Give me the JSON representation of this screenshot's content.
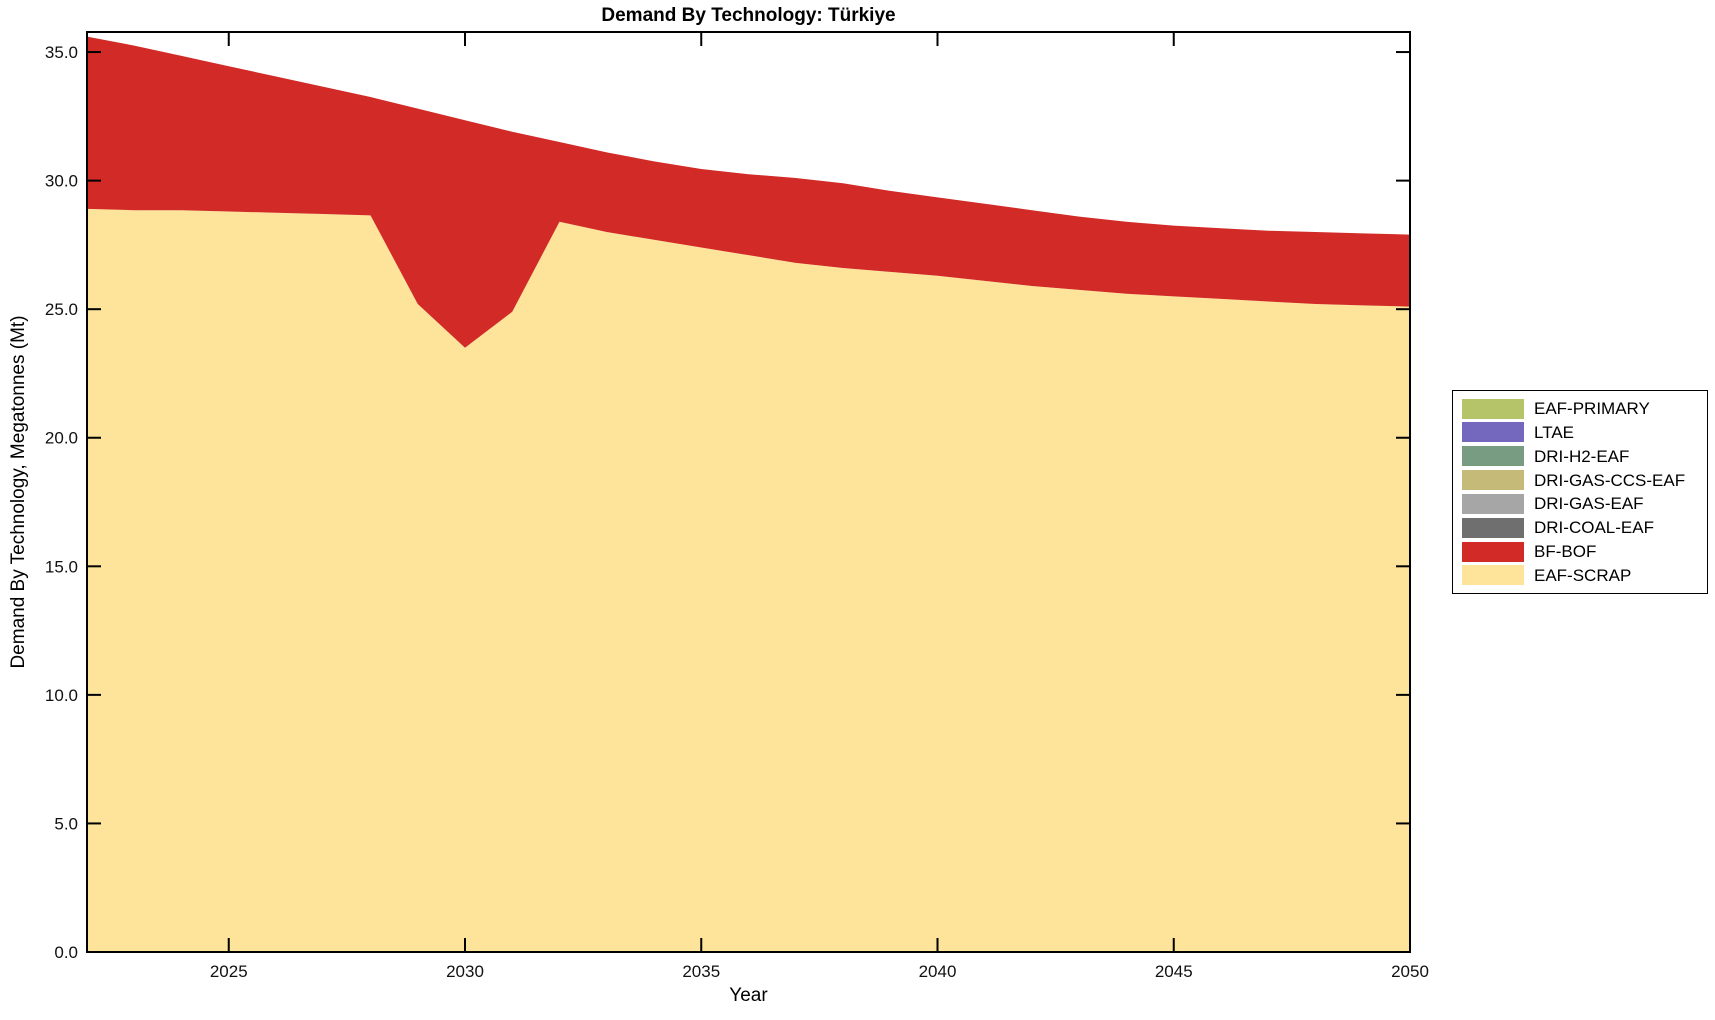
{
  "chart_data": {
    "type": "area",
    "stacked": true,
    "title": "Demand By Technology: Türkiye",
    "xlabel": "Year",
    "ylabel": "Demand By Technology, Megatonnes (Mt)",
    "xlim": [
      2022,
      2050
    ],
    "ylim": [
      0,
      35.78
    ],
    "grid": false,
    "tick_style": {
      "direction": "in",
      "sides": [
        "left",
        "right",
        "top",
        "bottom"
      ]
    },
    "xticks": {
      "values": [
        2025,
        2030,
        2035,
        2040,
        2045,
        2050
      ],
      "labels": [
        "2025",
        "2030",
        "2035",
        "2040",
        "2045",
        "2050"
      ]
    },
    "yticks": {
      "values": [
        0,
        5,
        10,
        15,
        20,
        25,
        30,
        35
      ],
      "labels": [
        "0.0",
        "5.0",
        "10.0",
        "15.0",
        "20.0",
        "25.0",
        "30.0",
        "35.0"
      ]
    },
    "x": [
      2022,
      2023,
      2024,
      2025,
      2026,
      2027,
      2028,
      2029,
      2030,
      2031,
      2032,
      2033,
      2034,
      2035,
      2036,
      2037,
      2038,
      2039,
      2040,
      2041,
      2042,
      2043,
      2044,
      2045,
      2046,
      2047,
      2048,
      2049,
      2050
    ],
    "series": [
      {
        "name": "EAF-SCRAP",
        "color": "#fde49a",
        "values": [
          28.9,
          28.85,
          28.85,
          28.8,
          28.75,
          28.7,
          28.65,
          25.2,
          23.5,
          24.9,
          28.4,
          28.0,
          27.7,
          27.4,
          27.1,
          26.8,
          26.6,
          26.45,
          26.3,
          26.1,
          25.9,
          25.75,
          25.6,
          25.5,
          25.4,
          25.3,
          25.2,
          25.15,
          25.1
        ]
      },
      {
        "name": "BF-BOF",
        "color": "#d22a26",
        "values": [
          6.7,
          6.4,
          6.0,
          5.65,
          5.3,
          4.95,
          4.6,
          7.6,
          8.85,
          7.0,
          3.1,
          3.1,
          3.05,
          3.05,
          3.15,
          3.3,
          3.3,
          3.15,
          3.05,
          3.0,
          2.95,
          2.85,
          2.8,
          2.75,
          2.75,
          2.75,
          2.8,
          2.8,
          2.8
        ]
      },
      {
        "name": "DRI-COAL-EAF",
        "color": "#6f6f6f",
        "values_constant": 0
      },
      {
        "name": "DRI-GAS-EAF",
        "color": "#a6a6a6",
        "values_constant": 0
      },
      {
        "name": "DRI-GAS-CCS-EAF",
        "color": "#c6ba79",
        "values_constant": 0
      },
      {
        "name": "DRI-H2-EAF",
        "color": "#789c82",
        "values_constant": 0
      },
      {
        "name": "LTAE",
        "color": "#7467be",
        "values_constant": 0
      },
      {
        "name": "EAF-PRIMARY",
        "color": "#b5c469",
        "values_constant": 0
      }
    ],
    "legend": {
      "position": "outside-right",
      "order_top_to_bottom": [
        "EAF-PRIMARY",
        "LTAE",
        "DRI-H2-EAF",
        "DRI-GAS-CCS-EAF",
        "DRI-GAS-EAF",
        "DRI-COAL-EAF",
        "BF-BOF",
        "EAF-SCRAP"
      ]
    }
  }
}
